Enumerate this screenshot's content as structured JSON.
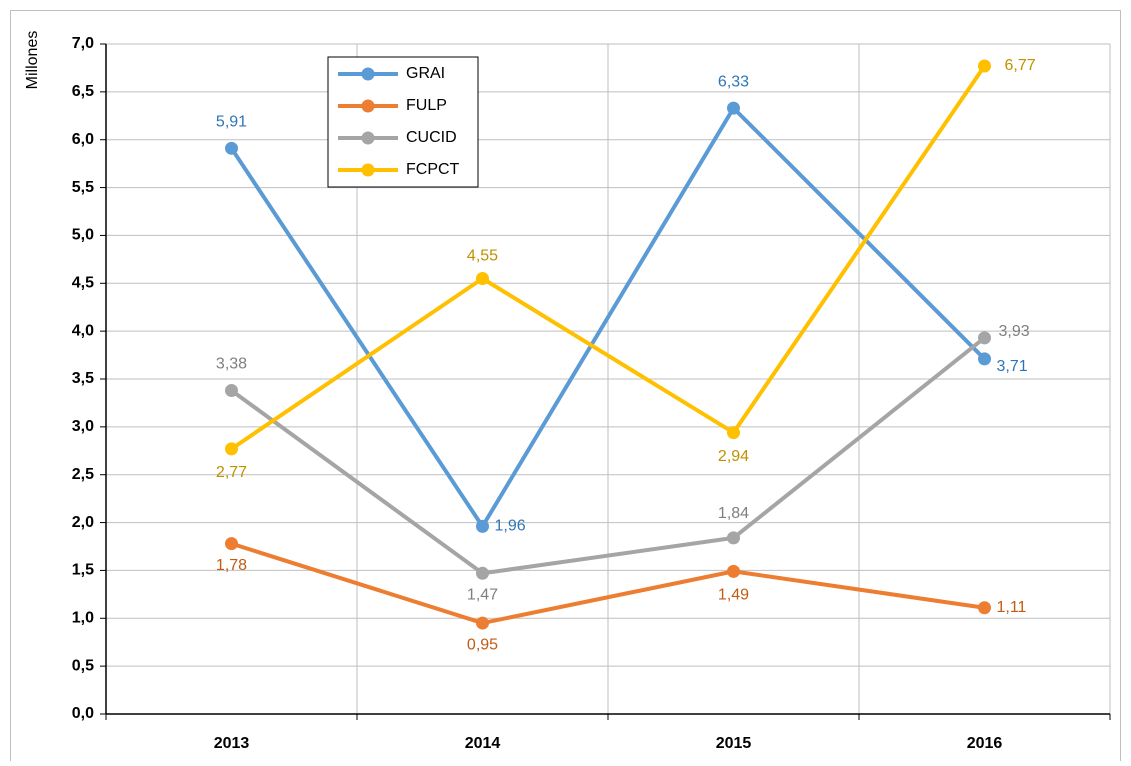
{
  "chart_data": {
    "type": "line",
    "y_label": "Millones",
    "categories": [
      "2013",
      "2014",
      "2015",
      "2016"
    ],
    "series": [
      {
        "name": "GRAI",
        "color": "#5b9bd5",
        "label_color": "#2e75b6",
        "values": [
          5.91,
          1.96,
          6.33,
          3.71
        ],
        "value_labels": [
          "5,91",
          "1,96",
          "6,33",
          "3,71"
        ]
      },
      {
        "name": "FULP",
        "color": "#ed7d31",
        "label_color": "#c55a11",
        "values": [
          1.78,
          0.95,
          1.49,
          1.11
        ],
        "value_labels": [
          "1,78",
          "0,95",
          "1,49",
          "1,11"
        ]
      },
      {
        "name": "CUCID",
        "color": "#a5a5a5",
        "label_color": "#7f7f7f",
        "values": [
          3.38,
          1.47,
          1.84,
          3.93
        ],
        "value_labels": [
          "3,38",
          "1,47",
          "1,84",
          "3,93"
        ]
      },
      {
        "name": "FCPCT",
        "color": "#ffc000",
        "label_color": "#bf9000",
        "values": [
          2.77,
          4.55,
          2.94,
          6.77
        ],
        "value_labels": [
          "2,77",
          "4,55",
          "2,94",
          "6,77"
        ]
      }
    ],
    "ylim": [
      0,
      7
    ],
    "yticks": [
      {
        "value": 0,
        "label": "0,0"
      },
      {
        "value": 0.5,
        "label": "0,5"
      },
      {
        "value": 1,
        "label": "1,0"
      },
      {
        "value": 1.5,
        "label": "1,5"
      },
      {
        "value": 2,
        "label": "2,0"
      },
      {
        "value": 2.5,
        "label": "2,5"
      },
      {
        "value": 3,
        "label": "3,0"
      },
      {
        "value": 3.5,
        "label": "3,5"
      },
      {
        "value": 4,
        "label": "4,0"
      },
      {
        "value": 4.5,
        "label": "4,5"
      },
      {
        "value": 5,
        "label": "5,0"
      },
      {
        "value": 5.5,
        "label": "5,5"
      },
      {
        "value": 6,
        "label": "6,0"
      },
      {
        "value": 6.5,
        "label": "6,5"
      },
      {
        "value": 7,
        "label": "7,0"
      }
    ],
    "grid": true
  }
}
